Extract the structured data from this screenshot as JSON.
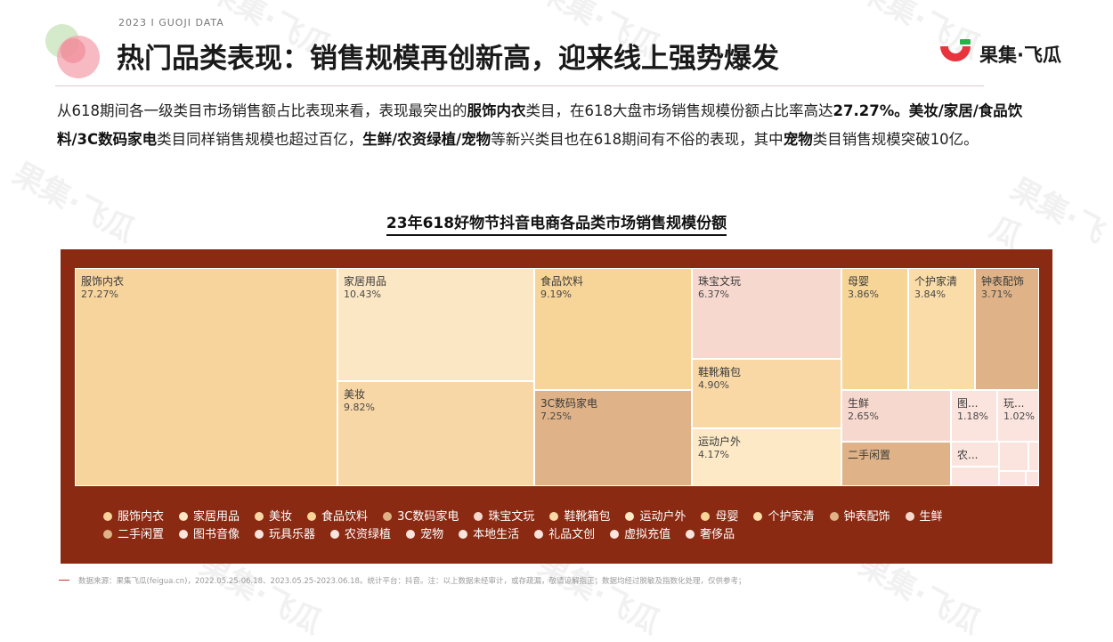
{
  "header": {
    "kicker": "2023 I GUOJI DATA",
    "title": "热门品类表现：销售规模再创新高，迎来线上强势爆发",
    "logo_text": "果集·飞瓜"
  },
  "intro": {
    "p1": "从618期间各一级类目市场销售额占比表现来看，表现最突出的",
    "b1": "服饰内衣",
    "p2": "类目，在618大盘市场销售规模份额占比率高达",
    "b2": "27.27%。美妆/家居/食品饮料/3C数码家电",
    "p3": "类目同样销售规模也超过百亿，",
    "b3": "生鲜/农资绿植/宠物",
    "p4": "等新兴类目也在618期间有不俗的表现，其中",
    "b4": "宠物",
    "p5": "类目销售规模突破10亿。"
  },
  "watermark": "果集·飞瓜",
  "chart_data": {
    "type": "treemap",
    "title": "23年618好物节抖音电商各品类市场销售规模份额",
    "unit": "%",
    "items": [
      {
        "name": "服饰内衣",
        "label": "服饰内衣",
        "value": 27.27,
        "value_text": "27.27%",
        "color": "#f7d49c"
      },
      {
        "name": "家居用品",
        "label": "家居用品",
        "value": 10.43,
        "value_text": "10.43%",
        "color": "#fce7c4"
      },
      {
        "name": "美妆",
        "label": "美妆",
        "value": 9.82,
        "value_text": "9.82%",
        "color": "#f8d7a6"
      },
      {
        "name": "食品饮料",
        "label": "食品饮料",
        "value": 9.19,
        "value_text": "9.19%",
        "color": "#f7d497"
      },
      {
        "name": "3C数码家电",
        "label": "3C数码家电",
        "value": 7.25,
        "value_text": "7.25%",
        "color": "#dfb387"
      },
      {
        "name": "珠宝文玩",
        "label": "珠宝文玩",
        "value": 6.37,
        "value_text": "6.37%",
        "color": "#f7d8ce"
      },
      {
        "name": "鞋靴箱包",
        "label": "鞋靴箱包",
        "value": 4.9,
        "value_text": "4.90%",
        "color": "#f9d8a6"
      },
      {
        "name": "运动户外",
        "label": "运动户外",
        "value": 4.17,
        "value_text": "4.17%",
        "color": "#fde9c6"
      },
      {
        "name": "母婴",
        "label": "母婴",
        "value": 3.86,
        "value_text": "3.86%",
        "color": "#f7d597"
      },
      {
        "name": "个护家清",
        "label": "个护家清",
        "value": 3.84,
        "value_text": "3.84%",
        "color": "#f9dca7"
      },
      {
        "name": "钟表配饰",
        "label": "钟表配饰",
        "value": 3.71,
        "value_text": "3.71%",
        "color": "#dfb387"
      },
      {
        "name": "生鲜",
        "label": "生鲜",
        "value": 2.65,
        "value_text": "2.65%",
        "color": "#f7d8ce"
      },
      {
        "name": "二手闲置",
        "label": "二手闲置",
        "value": null,
        "value_text": "",
        "color": "#dfb387"
      },
      {
        "name": "图书音像",
        "label": "图...",
        "value": 1.18,
        "value_text": "1.18%",
        "color": "#fbe4de"
      },
      {
        "name": "玩具乐器",
        "label": "玩...",
        "value": 1.02,
        "value_text": "1.02%",
        "color": "#fbe4de"
      },
      {
        "name": "农资绿植",
        "label": "农...",
        "value": null,
        "value_text": "",
        "color": "#fbe4de"
      },
      {
        "name": "宠物",
        "label": "",
        "value": null,
        "value_text": "",
        "color": "#fbe4de"
      },
      {
        "name": "本地生活",
        "label": "",
        "value": null,
        "value_text": "",
        "color": "#fbe4de"
      },
      {
        "name": "礼品文创",
        "label": "",
        "value": null,
        "value_text": "",
        "color": "#fbe4de"
      },
      {
        "name": "虚拟充值",
        "label": "",
        "value": null,
        "value_text": "",
        "color": "#fbe4de"
      },
      {
        "name": "奢侈品",
        "label": "",
        "value": null,
        "value_text": "",
        "color": "#fbe4de"
      }
    ],
    "legend": [
      {
        "name": "服饰内衣",
        "color": "#f7d49c"
      },
      {
        "name": "家居用品",
        "color": "#fce7c4"
      },
      {
        "name": "美妆",
        "color": "#f8d7a6"
      },
      {
        "name": "食品饮料",
        "color": "#f7d497"
      },
      {
        "name": "3C数码家电",
        "color": "#dfb387"
      },
      {
        "name": "珠宝文玩",
        "color": "#f7d8ce"
      },
      {
        "name": "鞋靴箱包",
        "color": "#f9d8a6"
      },
      {
        "name": "运动户外",
        "color": "#fde9c6"
      },
      {
        "name": "母婴",
        "color": "#f7d597"
      },
      {
        "name": "个护家清",
        "color": "#f9dca7"
      },
      {
        "name": "钟表配饰",
        "color": "#dfb387"
      },
      {
        "name": "生鲜",
        "color": "#f7d8ce"
      },
      {
        "name": "二手闲置",
        "color": "#dfb387"
      },
      {
        "name": "图书音像",
        "color": "#fbe4de"
      },
      {
        "name": "玩具乐器",
        "color": "#fbe4de"
      },
      {
        "name": "农资绿植",
        "color": "#fbe4de"
      },
      {
        "name": "宠物",
        "color": "#fbe4de"
      },
      {
        "name": "本地生活",
        "color": "#fbe4de"
      },
      {
        "name": "礼品文创",
        "color": "#fbe4de"
      },
      {
        "name": "虚拟充值",
        "color": "#fbe4de"
      },
      {
        "name": "奢侈品",
        "color": "#fbe4de"
      }
    ],
    "background_color": "#8b2a12"
  },
  "footer": {
    "source": "数据来源：果集飞瓜(feigua.cn)，2022.05.25-06.18、2023.05.25-2023.06.18。统计平台：抖音。注：以上数据未经审计，或存疏漏，敬请谅解指正；数据均经过脱敏及指数化处理，仅供参考；"
  }
}
